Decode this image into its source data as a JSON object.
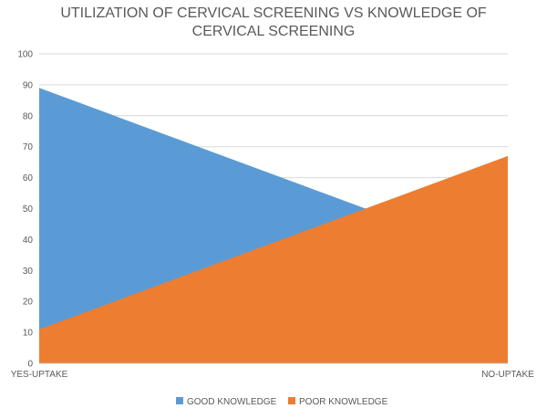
{
  "chart_data": {
    "type": "area",
    "title_lines": [
      "UTILIZATION OF CERVICAL SCREENING VS KNOWLEDGE OF",
      "CERVICAL  SCREENING"
    ],
    "categories": [
      "YES-UPTAKE",
      "NO-UPTAKE"
    ],
    "series": [
      {
        "name": "GOOD KNOWLEDGE",
        "values": [
          89,
          33
        ],
        "color": "#5b9bd5"
      },
      {
        "name": "POOR KNOWLEDGE",
        "values": [
          11,
          67
        ],
        "color": "#ed7d31"
      }
    ],
    "ylim": [
      0,
      100
    ],
    "yticks": [
      0,
      10,
      20,
      30,
      40,
      50,
      60,
      70,
      80,
      90,
      100
    ],
    "grid": true,
    "legend_position": "bottom"
  }
}
